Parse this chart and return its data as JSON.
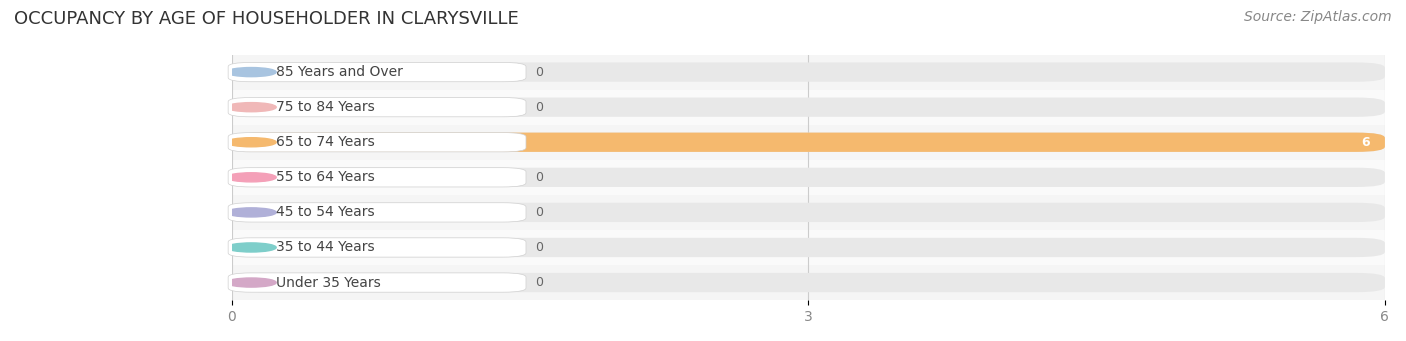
{
  "title": "OCCUPANCY BY AGE OF HOUSEHOLDER IN CLARYSVILLE",
  "source": "Source: ZipAtlas.com",
  "categories": [
    "Under 35 Years",
    "35 to 44 Years",
    "45 to 54 Years",
    "55 to 64 Years",
    "65 to 74 Years",
    "75 to 84 Years",
    "85 Years and Over"
  ],
  "values": [
    0,
    0,
    0,
    0,
    6,
    0,
    0
  ],
  "bar_colors": [
    "#d4a8c7",
    "#7ececa",
    "#b0b0d8",
    "#f4a0b8",
    "#f5b96e",
    "#f0b8b8",
    "#a8c4e0"
  ],
  "xlim": [
    0,
    6
  ],
  "xticks": [
    0,
    3,
    6
  ],
  "bg_color": "#ffffff",
  "title_fontsize": 13,
  "source_fontsize": 10,
  "label_fontsize": 10,
  "value_fontsize": 9,
  "bar_height": 0.55,
  "highlight_color": "#f5b96e",
  "default_bar_color": "#e8e8e8"
}
